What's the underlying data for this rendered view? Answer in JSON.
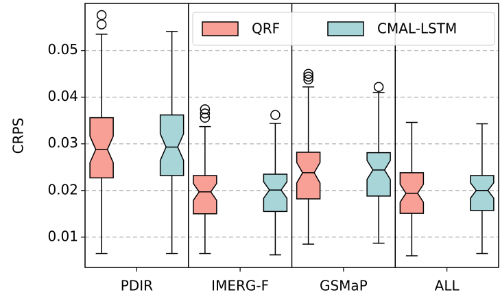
{
  "chart_data": {
    "type": "boxplot",
    "ylabel": "CRPS",
    "categories": [
      "PDIR",
      "IMERG-F",
      "GSMaP",
      "ALL"
    ],
    "ylim": [
      0.0035,
      0.0601
    ],
    "yticks": [
      0.01,
      0.02,
      0.03,
      0.04,
      0.05
    ],
    "grid": true,
    "notched": true,
    "legend": "upper right",
    "series": [
      {
        "name": "QRF",
        "color": "#f8a096",
        "boxes": [
          {
            "whislo": 0.0065,
            "q1": 0.0227,
            "med": 0.0288,
            "q3": 0.0356,
            "whishi": 0.0535,
            "fliers": [
              0.0576,
              0.0556
            ]
          },
          {
            "whislo": 0.0065,
            "q1": 0.015,
            "med": 0.0197,
            "q3": 0.0232,
            "whishi": 0.0337,
            "fliers": [
              0.0374,
              0.0365,
              0.0356
            ]
          },
          {
            "whislo": 0.0085,
            "q1": 0.0182,
            "med": 0.0238,
            "q3": 0.0282,
            "whishi": 0.0422,
            "fliers": [
              0.045,
              0.0444,
              0.0438
            ]
          },
          {
            "whislo": 0.006,
            "q1": 0.0151,
            "med": 0.0194,
            "q3": 0.0238,
            "whishi": 0.0346,
            "fliers": []
          }
        ]
      },
      {
        "name": "CMAL-LSTM",
        "color": "#a8d5d8",
        "boxes": [
          {
            "whislo": 0.0065,
            "q1": 0.0232,
            "med": 0.0293,
            "q3": 0.0362,
            "whishi": 0.0541,
            "fliers": []
          },
          {
            "whislo": 0.0062,
            "q1": 0.0155,
            "med": 0.0201,
            "q3": 0.0235,
            "whishi": 0.0344,
            "fliers": [
              0.0362
            ]
          },
          {
            "whislo": 0.0087,
            "q1": 0.0188,
            "med": 0.0244,
            "q3": 0.0281,
            "whishi": 0.041,
            "fliers": [
              0.0422
            ]
          },
          {
            "whislo": 0.0065,
            "q1": 0.0157,
            "med": 0.02,
            "q3": 0.0232,
            "whishi": 0.0343,
            "fliers": []
          }
        ]
      }
    ]
  }
}
